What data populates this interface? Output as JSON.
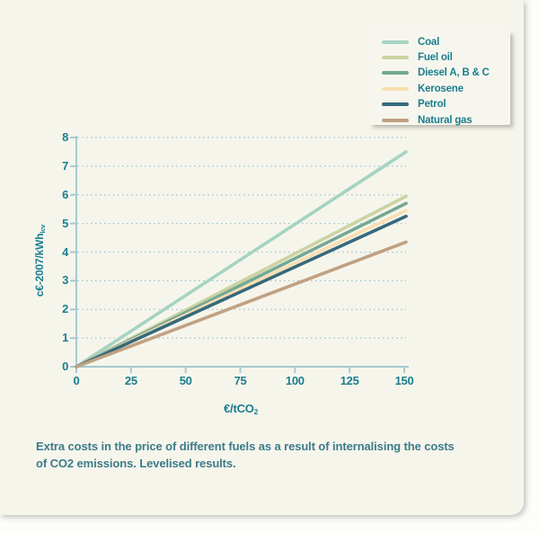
{
  "figure": {
    "caption_line1": "Extra costs in the price of different fuels as a result of internalising the costs",
    "caption_line2": "of CO2 emissions. Levelised results."
  },
  "chart_data": {
    "type": "line",
    "title": "",
    "x": [
      0,
      150
    ],
    "series": [
      {
        "name": "Coal",
        "color": "#a5d3c3",
        "values": [
          0,
          7.5
        ]
      },
      {
        "name": "Fuel oil",
        "color": "#cbd3a2",
        "values": [
          0,
          5.95
        ]
      },
      {
        "name": "Diesel A, B & C",
        "color": "#75a893",
        "values": [
          0,
          5.7
        ]
      },
      {
        "name": "Kerosene",
        "color": "#fadfb3",
        "values": [
          0,
          5.45
        ]
      },
      {
        "name": "Petrol",
        "color": "#35697c",
        "values": [
          0,
          5.25
        ]
      },
      {
        "name": "Natural gas",
        "color": "#c0a182",
        "values": [
          0,
          4.35
        ]
      }
    ],
    "xlabel": {
      "main": "€/tCO",
      "sub": "2"
    },
    "ylabel": {
      "main": "c€-2007/kWh",
      "sub": "lcv"
    },
    "xlim": [
      0,
      150
    ],
    "ylim": [
      0,
      8
    ],
    "xticks": [
      0,
      25,
      50,
      75,
      100,
      125,
      150
    ],
    "yticks": [
      0,
      1,
      2,
      3,
      4,
      5,
      6,
      7,
      8
    ],
    "grid": "dotted-horizontal",
    "legend_position": "top-right",
    "colors": {
      "axis": "#a5cad2",
      "grid": "#9fc7d2",
      "tick_text": "#1a7e8e",
      "caption_text": "#3c7b89",
      "card_bg": "#f6f5ec",
      "legend_bg": "#f7f6ee"
    }
  }
}
